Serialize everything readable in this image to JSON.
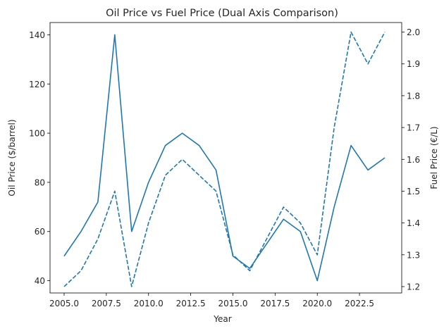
{
  "chart_data": {
    "type": "line",
    "title": "Oil Price vs Fuel Price (Dual Axis Comparison)",
    "xlabel": "Year",
    "ylabel_left": "Oil Price ($/barrel)",
    "ylabel_right": "Fuel Price (€/L)",
    "x": [
      2005,
      2006,
      2007,
      2008,
      2009,
      2010,
      2011,
      2012,
      2013,
      2014,
      2015,
      2016,
      2017,
      2018,
      2019,
      2020,
      2021,
      2022,
      2023,
      2024
    ],
    "xlim": [
      2005,
      2024
    ],
    "ylim_left": [
      35,
      145
    ],
    "ylim_right": [
      1.18,
      2.03
    ],
    "xticks": [
      "2005.0",
      "2007.5",
      "2010.0",
      "2012.5",
      "2015.0",
      "2017.5",
      "2020.0",
      "2022.5"
    ],
    "yticks_left": [
      "40",
      "60",
      "80",
      "100",
      "120",
      "140"
    ],
    "yticks_right": [
      "1.2",
      "1.3",
      "1.4",
      "1.5",
      "1.6",
      "1.7",
      "1.8",
      "1.9",
      "2.0"
    ],
    "grid": false,
    "legend": false,
    "series": [
      {
        "axis": "left",
        "style": "solid",
        "color": "#1f77b4",
        "values": [
          50,
          60,
          72,
          140,
          60,
          80,
          95,
          100,
          95,
          85,
          50,
          45,
          55,
          65,
          60,
          40,
          70,
          95,
          85,
          90
        ]
      },
      {
        "axis": "right",
        "style": "dashed",
        "color": "#1f77b4",
        "values": [
          1.2,
          1.25,
          1.35,
          1.5,
          1.2,
          1.4,
          1.55,
          1.6,
          1.55,
          1.5,
          1.3,
          1.25,
          1.35,
          1.45,
          1.4,
          1.3,
          1.7,
          2.0,
          1.9,
          2.0
        ]
      }
    ]
  }
}
